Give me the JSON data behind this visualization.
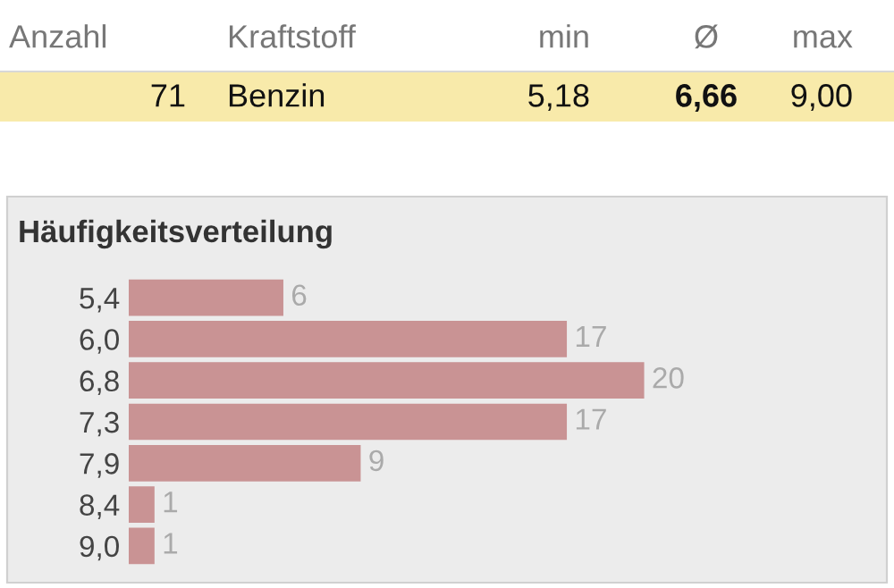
{
  "chart_data": [
    {
      "type": "other",
      "categories": [
        "Anzahl",
        "Kraftstoff",
        "min",
        "Ø",
        "max"
      ],
      "annotations": [
        "71",
        "Benzin",
        "5,18",
        "6,66",
        "9,00"
      ],
      "color": "#f8eaaa"
    },
    {
      "type": "bar",
      "title": "Häufigkeitsverteilung",
      "orientation": "horizontal",
      "categories": [
        "5,4",
        "6,0",
        "6,8",
        "7,3",
        "7,9",
        "8,4",
        "9,0"
      ],
      "values": [
        6,
        17,
        20,
        17,
        9,
        1,
        1
      ],
      "color": "#c99394",
      "data_labels": true,
      "tick_labels": "y",
      "grid": false,
      "legend": false
    }
  ]
}
